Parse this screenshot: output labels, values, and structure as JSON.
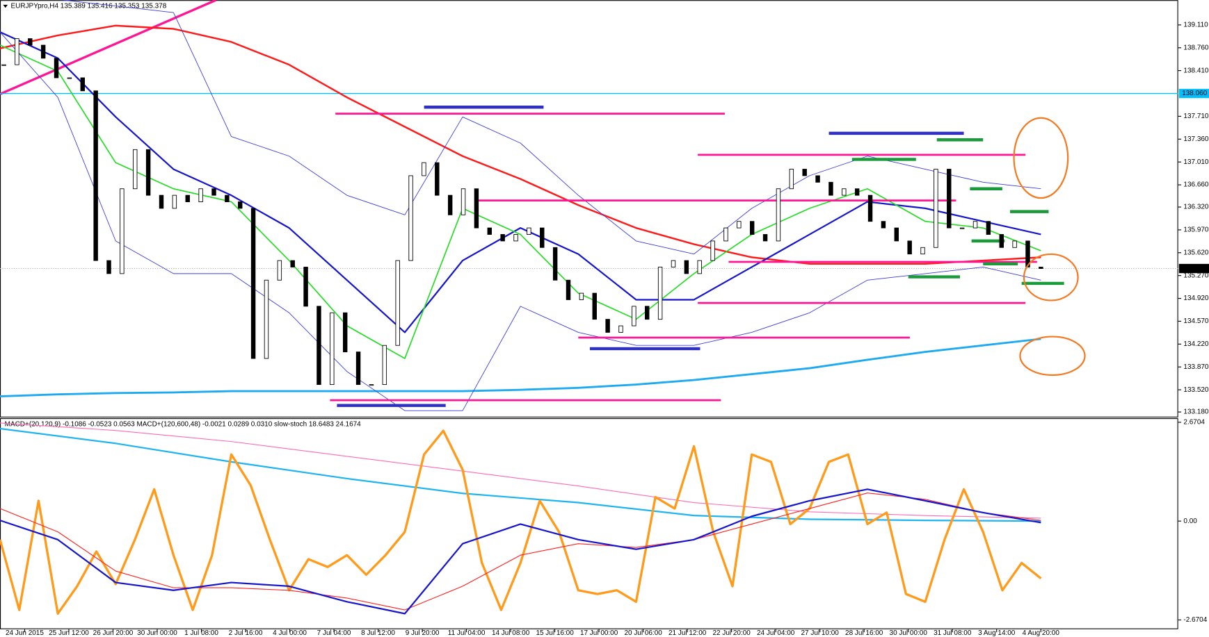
{
  "header": "EURJPYpro,H4  135.389 135.416 135.353 135.378",
  "chart_data": [
    {
      "type": "candlestick",
      "x_labels": [
        "24 Jun 2015",
        "25 Jun 12:00",
        "26 Jun 20:00",
        "30 Jun 00:00",
        "1 Jul 08:00",
        "2 Jul 16:00",
        "4 Jul 00:00",
        "7 Jul 04:00",
        "8 Jul 12:00",
        "9 Jul 20:00",
        "11 Jul 04:00",
        "14 Jul 08:00",
        "15 Jul 16:00",
        "17 Jul 00:00",
        "20 Jul 06:00",
        "21 Jul 12:00",
        "22 Jul 20:00",
        "24 Jul 04:00",
        "27 Jul 10:00",
        "28 Jul 16:00",
        "30 Jul 00:00",
        "31 Jul 08:00",
        "3 Aug 14:00",
        "4 Aug 20:00"
      ],
      "close": [
        138.5,
        138.9,
        138.8,
        138.6,
        138.3,
        138.3,
        138.1,
        135.5,
        135.3,
        136.6,
        137.2,
        136.5,
        136.3,
        136.5,
        136.4,
        136.6,
        136.5,
        136.4,
        136.3,
        134.0,
        135.2,
        135.5,
        135.4,
        134.8,
        133.6,
        134.7,
        134.1,
        133.6,
        133.6,
        134.2,
        135.5,
        136.8,
        137.0,
        136.5,
        136.2,
        136.6,
        136.0,
        135.9,
        135.8,
        135.9,
        136.0,
        135.7,
        135.2,
        134.9,
        135.0,
        134.6,
        134.4,
        134.5,
        134.8,
        134.6,
        135.4,
        135.5,
        135.3,
        135.5,
        135.8,
        136.0,
        136.1,
        135.9,
        135.8,
        136.6,
        136.9,
        136.8,
        136.7,
        136.5,
        136.6,
        136.5,
        136.1,
        136.0,
        135.8,
        135.6,
        135.7,
        136.9,
        136.0,
        136.0,
        136.1,
        135.9,
        135.7,
        135.8,
        135.4,
        135.378
      ],
      "ylim": [
        133.12,
        139.49
      ],
      "yticks": [
        {
          "value": 139.11,
          "label": "139.110"
        },
        {
          "value": 138.76,
          "label": "138.760"
        },
        {
          "value": 138.41,
          "label": "138.410"
        },
        {
          "value": 137.71,
          "label": "137.710"
        },
        {
          "value": 137.36,
          "label": "137.360"
        },
        {
          "value": 137.01,
          "label": "137.010"
        },
        {
          "value": 136.66,
          "label": "136.660"
        },
        {
          "value": 136.32,
          "label": "136.320"
        },
        {
          "value": 135.97,
          "label": "135.970"
        },
        {
          "value": 135.62,
          "label": "135.620"
        },
        {
          "value": 135.27,
          "label": "135.270"
        },
        {
          "value": 134.92,
          "label": "134.920"
        },
        {
          "value": 134.57,
          "label": "134.570"
        },
        {
          "value": 134.22,
          "label": "134.220"
        },
        {
          "value": 133.87,
          "label": "133.870"
        },
        {
          "value": 133.52,
          "label": "133.520"
        },
        {
          "value": 133.18,
          "label": "133.180"
        }
      ],
      "hline": {
        "value": 138.06,
        "label": "138.060",
        "color": "#00bfff"
      },
      "last_price": {
        "value": 135.378,
        "label": "135.378"
      },
      "trendline": {
        "color": "#ff1493",
        "values": [
          138.05,
          139.49
        ]
      },
      "series": [
        {
          "color": "#ff1a1a",
          "values": [
            138.75,
            138.95,
            139.1,
            139.05,
            138.85,
            138.5,
            138.0,
            137.55,
            137.1,
            136.75,
            136.35,
            136.0,
            135.75,
            135.55,
            135.45,
            135.45,
            135.45,
            135.5,
            135.55
          ]
        },
        {
          "color": "#1eaaf0",
          "values": [
            133.42,
            133.45,
            133.47,
            133.48,
            133.5,
            133.5,
            133.5,
            133.5,
            133.5,
            133.52,
            133.55,
            133.6,
            133.67,
            133.76,
            133.85,
            133.98,
            134.1,
            134.2,
            134.3
          ]
        },
        {
          "color": "#1515d0",
          "values": [
            139.0,
            138.6,
            137.7,
            136.9,
            136.5,
            136.0,
            135.2,
            134.4,
            135.5,
            136.0,
            135.6,
            134.9,
            134.9,
            135.4,
            135.9,
            136.4,
            136.3,
            136.1,
            135.9
          ]
        },
        {
          "color": "#22dd22",
          "values": [
            138.8,
            138.4,
            137.0,
            136.6,
            136.4,
            135.5,
            134.5,
            134.0,
            136.3,
            135.9,
            135.0,
            134.6,
            135.3,
            135.9,
            136.3,
            136.6,
            136.1,
            136.0,
            135.65
          ]
        },
        {
          "color": "#3a3ae0",
          "values": [
            139.5,
            139.5,
            139.4,
            139.3,
            137.4,
            137.1,
            136.5,
            136.2,
            137.7,
            137.3,
            136.5,
            135.8,
            135.6,
            136.3,
            136.8,
            137.1,
            136.9,
            136.7,
            136.6
          ]
        },
        {
          "color": "#3a3ae0",
          "values": [
            139.0,
            138.0,
            135.8,
            135.3,
            135.3,
            134.7,
            133.8,
            133.2,
            133.2,
            134.8,
            134.4,
            134.2,
            134.2,
            134.4,
            134.7,
            135.2,
            135.3,
            135.4,
            135.2
          ]
        }
      ],
      "levels": [
        {
          "color": "#ff1493",
          "values": [
            137.75,
            137.12,
            136.42,
            135.48,
            134.85,
            134.32,
            133.36
          ]
        },
        {
          "color": "#3030c0",
          "values": [
            137.85,
            137.45,
            134.15,
            133.28
          ]
        },
        {
          "color": "#1a9a3a",
          "values": [
            137.35,
            137.05,
            136.6,
            136.25,
            135.8,
            135.45,
            135.25,
            135.15
          ]
        }
      ]
    },
    {
      "type": "line",
      "title": "MACD+(20,120,9) -0.1086 -0.0523 0.0563  MACD+(120,600,48) -0.0021 0.0289 0.0310  slow-stoch 18.6483 24.1674",
      "ylim": [
        -2.92,
        2.78
      ],
      "yticks": [
        2.6704,
        {
          "value": 0,
          "label": "0.00"
        },
        -2.6704
      ],
      "series": [
        {
          "color": "#ff69b4",
          "values": [
            2.65,
            2.45,
            2.15,
            1.75,
            1.35,
            0.95,
            0.5,
            0.25,
            0.15,
            0.08
          ]
        },
        {
          "color": "#1eb4f0",
          "values": [
            2.5,
            2.1,
            1.6,
            1.15,
            0.75,
            0.5,
            0.15,
            0.05,
            0.02,
            0.0
          ]
        },
        {
          "color": "#ff9a1a",
          "values": [
            -0.5,
            -2.4,
            0.55,
            -2.5,
            -1.76,
            -0.82,
            -1.7,
            -0.5,
            0.86,
            -0.92,
            -2.4,
            -0.92,
            1.8,
            0.97,
            -0.5,
            -1.87,
            -1.03,
            -1.24,
            -0.92,
            -1.45,
            -0.92,
            -0.29,
            1.8,
            2.44,
            1.39,
            -1.13,
            -2.4,
            -1.13,
            0.55,
            -0.29,
            -1.87,
            -1.97,
            -1.87,
            -2.18,
            0.65,
            0.34,
            2.02,
            -0.29,
            -1.76,
            1.8,
            1.6,
            -0.08,
            0.34,
            1.6,
            1.8,
            -0.08,
            0.23,
            -1.97,
            -2.18,
            -0.5,
            0.86,
            -0.29,
            -1.87,
            -1.13,
            -1.55
          ]
        },
        {
          "color": "#ff2020",
          "values": [
            0.34,
            -0.29,
            -1.35,
            -1.8,
            -1.8,
            -1.87,
            -2.08,
            -2.4,
            -1.76,
            -0.92,
            -0.61,
            -0.71,
            -0.5,
            -0.08,
            0.34,
            0.76,
            0.59,
            0.23,
            0.02
          ]
        },
        {
          "color": "#1515d0",
          "values": [
            0.02,
            -0.5,
            -1.66,
            -1.87,
            -1.66,
            -1.76,
            -2.18,
            -2.5,
            -0.61,
            -0.08,
            -0.5,
            -0.76,
            -0.5,
            0.13,
            0.55,
            0.86,
            0.55,
            0.23,
            -0.04
          ]
        }
      ]
    }
  ]
}
